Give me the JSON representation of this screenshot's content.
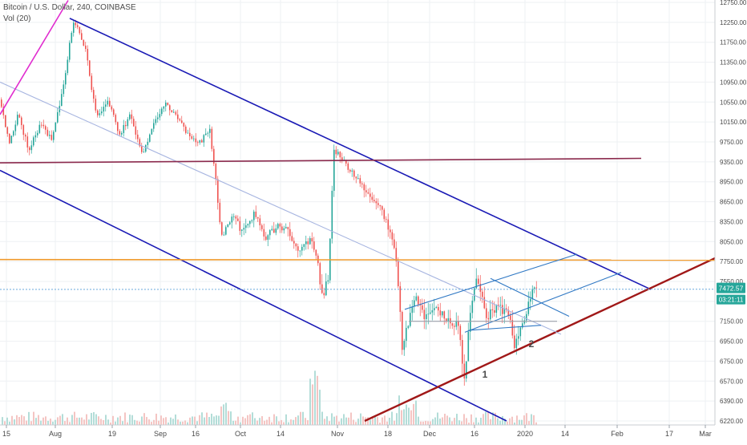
{
  "chart_data": {
    "type": "candlestick",
    "title": "Bitcoin / U.S. Dollar, 240, COINBASE",
    "indicator": "Vol (20)",
    "x_ticks": [
      "15",
      "Aug",
      "19",
      "Sep",
      "16",
      "Oct",
      "14",
      "Nov",
      "18",
      "Dec",
      "16",
      "2020",
      "14",
      "Feb",
      "17",
      "Mar"
    ],
    "y_ticks": [
      6220,
      6390,
      6570,
      6750,
      6950,
      7150,
      7350,
      7550,
      7750,
      8050,
      8350,
      8650,
      8950,
      9350,
      9750,
      10150,
      10550,
      10950,
      11350,
      11750,
      12250,
      12750
    ],
    "ylim": [
      6220,
      12750
    ],
    "current_price": "7472.57",
    "countdown": "03:21:11",
    "price_path": [
      [
        0,
        10600
      ],
      [
        1.5,
        9700
      ],
      [
        3,
        10300
      ],
      [
        5,
        9600
      ],
      [
        7,
        10100
      ],
      [
        9,
        9800
      ],
      [
        11,
        10800
      ],
      [
        13,
        12300
      ],
      [
        15,
        11600
      ],
      [
        17,
        10200
      ],
      [
        19,
        10600
      ],
      [
        21,
        9900
      ],
      [
        23,
        10300
      ],
      [
        25,
        9500
      ],
      [
        27,
        10100
      ],
      [
        29,
        10500
      ],
      [
        31,
        10300
      ],
      [
        33,
        9900
      ],
      [
        35,
        9700
      ],
      [
        37,
        10000
      ],
      [
        39,
        8100
      ],
      [
        41,
        8400
      ],
      [
        43,
        8200
      ],
      [
        45,
        8500
      ],
      [
        47,
        8100
      ],
      [
        49,
        8300
      ],
      [
        51,
        8200
      ],
      [
        53,
        7900
      ],
      [
        55,
        8100
      ],
      [
        57,
        7400
      ],
      [
        58,
        7600
      ],
      [
        59,
        9600
      ],
      [
        61,
        9300
      ],
      [
        63,
        9000
      ],
      [
        65,
        8800
      ],
      [
        67,
        8600
      ],
      [
        69,
        8200
      ],
      [
        70,
        7800
      ],
      [
        71,
        6900
      ],
      [
        72,
        7100
      ],
      [
        73,
        7400
      ],
      [
        75,
        7200
      ],
      [
        77,
        7300
      ],
      [
        79,
        7200
      ],
      [
        81,
        7100
      ],
      [
        82,
        6550
      ],
      [
        83,
        7200
      ],
      [
        84,
        7600
      ],
      [
        86,
        7200
      ],
      [
        88,
        7300
      ],
      [
        90,
        7250
      ],
      [
        91,
        6900
      ],
      [
        92,
        7100
      ],
      [
        93,
        7200
      ],
      [
        94,
        7450
      ],
      [
        95,
        7480
      ]
    ],
    "trend_lines": [
      {
        "name": "channel-upper",
        "color": "#1a1ab5",
        "x1": 87,
        "y1": 12350,
        "x2": 812,
        "y2": 7470
      },
      {
        "name": "channel-lower",
        "color": "#1a1ab5",
        "x1": 0,
        "y1": 9180,
        "x2": 632,
        "y2": 6220
      },
      {
        "name": "long-support",
        "color": "#a01818",
        "x1": 455,
        "y1": 6220,
        "x2": 892,
        "y2": 7800
      },
      {
        "name": "mid-trend",
        "color": "#a6b4e0",
        "x1": 0,
        "y1": 10950,
        "x2": 700,
        "y2": 7020
      },
      {
        "name": "resistance-purple",
        "color": "#8b2a4d",
        "x1": 0,
        "y1": 9330,
        "x2": 800,
        "y2": 9420
      },
      {
        "name": "resistance-orange",
        "color": "#f09a2c",
        "x1": 0,
        "y1": 7780,
        "x2": 892,
        "y2": 7770
      },
      {
        "name": "parabolic-pink",
        "color": "#e02ccf",
        "x1": 0,
        "y1": 10300,
        "x2": 85,
        "y2": 12800
      },
      {
        "name": "price-level",
        "color": "#7ab2e0",
        "x1": 0,
        "y1": 7470,
        "x2": 892,
        "y2": 7472
      },
      {
        "name": "small-ch-top",
        "color": "#2f78c4",
        "x1": 505,
        "y1": 7270,
        "x2": 720,
        "y2": 7860
      },
      {
        "name": "small-ch-bot",
        "color": "#2f78c4",
        "x1": 580,
        "y1": 7040,
        "x2": 775,
        "y2": 7640
      },
      {
        "name": "wedge-top",
        "color": "#2f78c4",
        "x1": 612,
        "y1": 7580,
        "x2": 710,
        "y2": 7200
      },
      {
        "name": "wedge-bot",
        "color": "#2f78c4",
        "x1": 585,
        "y1": 7060,
        "x2": 675,
        "y2": 7110
      },
      {
        "name": "grey-level",
        "color": "#9aa0aa",
        "x1": 510,
        "y1": 7150,
        "x2": 695,
        "y2": 7150
      }
    ],
    "annotations": [
      {
        "text": "1",
        "x": 605,
        "y": 6600
      },
      {
        "text": "2",
        "x": 663,
        "y": 6890
      }
    ],
    "grid": true,
    "legend": "top-left"
  },
  "colors": {
    "up": "#26a69a",
    "down": "#ef5350",
    "price_badge": "#26a69a",
    "grid": "#eef0f3",
    "axis_text": "#4a4a4a"
  }
}
